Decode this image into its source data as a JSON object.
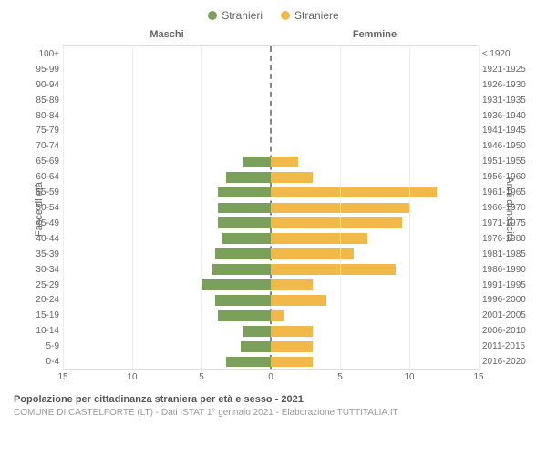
{
  "legend": {
    "male": {
      "label": "Stranieri",
      "color": "#7ba05b"
    },
    "female": {
      "label": "Straniere",
      "color": "#f0b94a"
    }
  },
  "column_header": {
    "male": "Maschi",
    "female": "Femmine"
  },
  "axis_label": {
    "left": "Fasce di età",
    "right": "Anni di nascita"
  },
  "x_axis": {
    "min": -15,
    "max": 15,
    "ticks": [
      -15,
      -10,
      -5,
      0,
      5,
      10,
      15
    ],
    "tick_labels": [
      "15",
      "10",
      "5",
      "0",
      "5",
      "10",
      "15"
    ]
  },
  "chart": {
    "type": "population-pyramid",
    "grid_color": "#eeeeee",
    "center_line_color": "#888888",
    "bar_height_ratio": 0.7,
    "rows": [
      {
        "age": "100+",
        "years": "≤ 1920",
        "m": 0,
        "f": 0
      },
      {
        "age": "95-99",
        "years": "1921-1925",
        "m": 0,
        "f": 0
      },
      {
        "age": "90-94",
        "years": "1926-1930",
        "m": 0,
        "f": 0
      },
      {
        "age": "85-89",
        "years": "1931-1935",
        "m": 0,
        "f": 0
      },
      {
        "age": "80-84",
        "years": "1936-1940",
        "m": 0,
        "f": 0
      },
      {
        "age": "75-79",
        "years": "1941-1945",
        "m": 0,
        "f": 0
      },
      {
        "age": "70-74",
        "years": "1946-1950",
        "m": 0,
        "f": 0
      },
      {
        "age": "65-69",
        "years": "1951-1955",
        "m": 2,
        "f": 2
      },
      {
        "age": "60-64",
        "years": "1956-1960",
        "m": 3.2,
        "f": 3
      },
      {
        "age": "55-59",
        "years": "1961-1965",
        "m": 3.8,
        "f": 12
      },
      {
        "age": "50-54",
        "years": "1966-1970",
        "m": 3.8,
        "f": 10
      },
      {
        "age": "45-49",
        "years": "1971-1975",
        "m": 3.8,
        "f": 9.5
      },
      {
        "age": "40-44",
        "years": "1976-1980",
        "m": 3.5,
        "f": 7
      },
      {
        "age": "35-39",
        "years": "1981-1985",
        "m": 4,
        "f": 6
      },
      {
        "age": "30-34",
        "years": "1986-1990",
        "m": 4.2,
        "f": 9
      },
      {
        "age": "25-29",
        "years": "1991-1995",
        "m": 5,
        "f": 3
      },
      {
        "age": "20-24",
        "years": "1996-2000",
        "m": 4,
        "f": 4
      },
      {
        "age": "15-19",
        "years": "2001-2005",
        "m": 3.8,
        "f": 1
      },
      {
        "age": "10-14",
        "years": "2006-2010",
        "m": 2,
        "f": 3
      },
      {
        "age": "5-9",
        "years": "2011-2015",
        "m": 2.2,
        "f": 3
      },
      {
        "age": "0-4",
        "years": "2016-2020",
        "m": 3.2,
        "f": 3
      }
    ]
  },
  "footer": {
    "title": "Popolazione per cittadinanza straniera per età e sesso - 2021",
    "subtitle": "COMUNE DI CASTELFORTE (LT) - Dati ISTAT 1° gennaio 2021 - Elaborazione TUTTITALIA.IT"
  }
}
